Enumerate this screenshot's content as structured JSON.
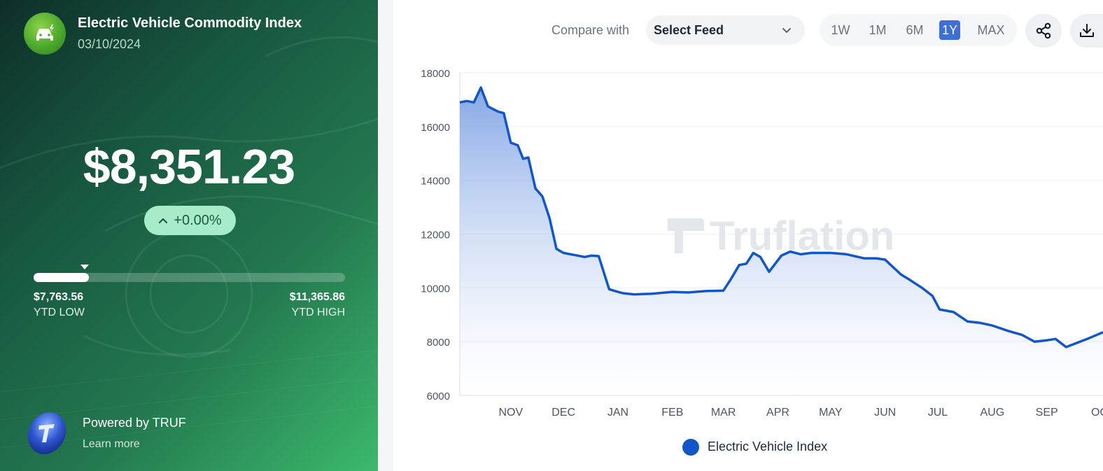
{
  "index": {
    "title": "Electric Vehicle Commodity Index",
    "date": "03/10/2024",
    "price": "$8,351.23",
    "change": "+0.00%",
    "ytd_low_value": "$7,763.56",
    "ytd_low_label": "YTD LOW",
    "ytd_high_value": "$11,365.86",
    "ytd_high_label": "YTD HIGH",
    "range_position": 0.163,
    "icon": "ev-car-icon"
  },
  "footer": {
    "powered": "Powered by TRUF",
    "learn_more": "Learn more",
    "icon": "truf-logo-icon"
  },
  "toolbar": {
    "compare_label": "Compare with",
    "select_value": "Select Feed",
    "ranges": [
      "1W",
      "1M",
      "6M",
      "1Y",
      "MAX"
    ],
    "active_range": "1Y",
    "share_icon": "share-icon",
    "download_icon": "download-icon"
  },
  "colors": {
    "line": "#1356c8",
    "active_range": "#3d6fd6",
    "change_badge": "#a8ebc9"
  },
  "chart_data": {
    "type": "area",
    "watermark": "Truflation",
    "legend": "Electric Vehicle Index",
    "legend_placement": "bottom-center",
    "grid": true,
    "ylim": [
      6000,
      18000
    ],
    "yticks": [
      6000,
      8000,
      10000,
      12000,
      14000,
      16000,
      18000
    ],
    "xlim": [
      "2023-10-03",
      "2024-10-03"
    ],
    "xticks": [
      {
        "label": "NOV",
        "date": "2023-11-01"
      },
      {
        "label": "DEC",
        "date": "2023-12-01"
      },
      {
        "label": "JAN",
        "date": "2024-01-01"
      },
      {
        "label": "FEB",
        "date": "2024-02-01"
      },
      {
        "label": "MAR",
        "date": "2024-03-01"
      },
      {
        "label": "APR",
        "date": "2024-04-01"
      },
      {
        "label": "MAY",
        "date": "2024-05-01"
      },
      {
        "label": "JUN",
        "date": "2024-06-01"
      },
      {
        "label": "JUL",
        "date": "2024-07-01"
      },
      {
        "label": "AUG",
        "date": "2024-08-01"
      },
      {
        "label": "SEP",
        "date": "2024-09-01"
      },
      {
        "label": "OC",
        "date": "2024-10-01"
      }
    ],
    "series": [
      {
        "name": "Electric Vehicle Index",
        "x": [
          "2023-10-03",
          "2023-10-07",
          "2023-10-11",
          "2023-10-15",
          "2023-10-19",
          "2023-10-22",
          "2023-10-25",
          "2023-10-28",
          "2023-11-01",
          "2023-11-05",
          "2023-11-08",
          "2023-11-11",
          "2023-11-15",
          "2023-11-19",
          "2023-11-23",
          "2023-11-27",
          "2023-12-01",
          "2023-12-05",
          "2023-12-09",
          "2023-12-13",
          "2023-12-17",
          "2023-12-21",
          "2023-12-27",
          "2024-01-01",
          "2024-01-04",
          "2024-01-10",
          "2024-01-20",
          "2024-02-01",
          "2024-02-10",
          "2024-02-20",
          "2024-03-01",
          "2024-03-05",
          "2024-03-10",
          "2024-03-14",
          "2024-03-18",
          "2024-03-22",
          "2024-03-27",
          "2024-04-03",
          "2024-04-08",
          "2024-04-14",
          "2024-04-20",
          "2024-05-01",
          "2024-05-10",
          "2024-05-20",
          "2024-05-27",
          "2024-06-01",
          "2024-06-10",
          "2024-06-15",
          "2024-06-22",
          "2024-06-28",
          "2024-07-02",
          "2024-07-10",
          "2024-07-18",
          "2024-07-25",
          "2024-08-01",
          "2024-08-10",
          "2024-08-18",
          "2024-08-25",
          "2024-09-01",
          "2024-09-06",
          "2024-09-12",
          "2024-09-18",
          "2024-09-24",
          "2024-10-03"
        ],
        "values": [
          16900,
          16950,
          16900,
          17450,
          16750,
          16650,
          16550,
          16500,
          15400,
          15300,
          14800,
          14850,
          13700,
          13400,
          12600,
          11450,
          11300,
          11250,
          11200,
          11150,
          11200,
          11180,
          9950,
          9850,
          9800,
          9760,
          9780,
          9850,
          9830,
          9880,
          9900,
          10300,
          10850,
          10900,
          11300,
          11150,
          10600,
          11200,
          11350,
          11250,
          11300,
          11300,
          11250,
          11100,
          11100,
          11050,
          10500,
          10300,
          10000,
          9700,
          9200,
          9100,
          8750,
          8700,
          8600,
          8400,
          8250,
          8000,
          8050,
          8100,
          7800,
          7950,
          8100,
          8350
        ]
      }
    ]
  }
}
